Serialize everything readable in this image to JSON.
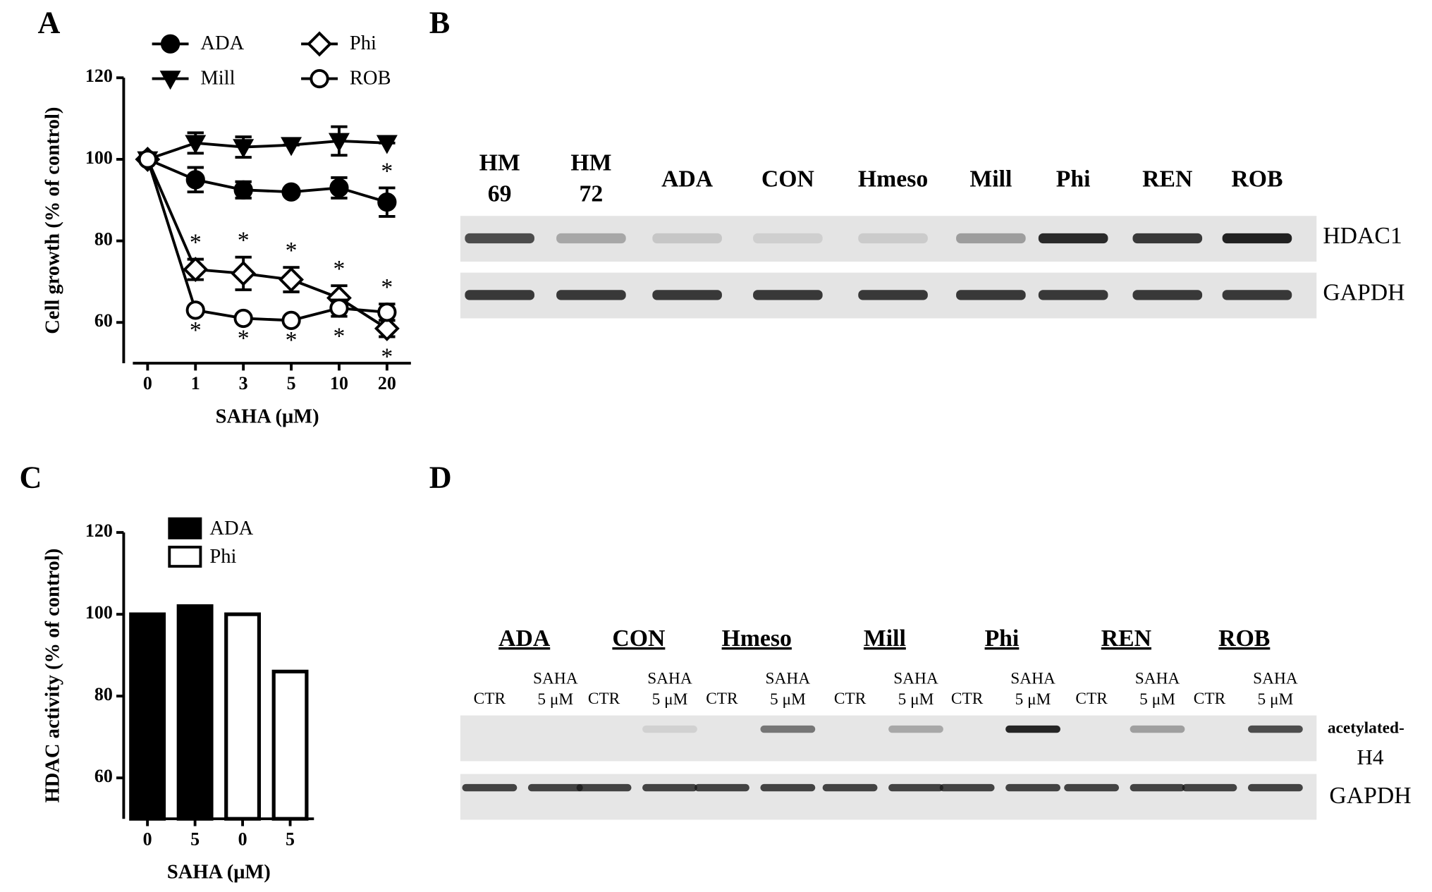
{
  "panels": [
    "A",
    "B",
    "C",
    "D"
  ],
  "chart_data": [
    {
      "type": "line",
      "xlabel": "SAHA (μM)",
      "ylabel": "Cell growth (% of control)",
      "categories": [
        "0",
        "1",
        "3",
        "5",
        "10",
        "20"
      ],
      "ylim": [
        50,
        120
      ],
      "yticks": [
        60,
        80,
        100,
        120
      ],
      "series": [
        {
          "name": "ADA",
          "color": "#000000",
          "marker": "circle",
          "filled": true,
          "values": [
            100,
            95,
            92.5,
            92,
            93,
            89.5
          ],
          "errors": [
            0,
            3,
            2,
            0,
            2.5,
            3.5
          ],
          "significance": [
            null,
            null,
            null,
            null,
            null,
            "*"
          ]
        },
        {
          "name": "Mill",
          "color": "#000000",
          "marker": "triangle-down",
          "filled": true,
          "values": [
            100,
            104,
            103,
            103.5,
            104.5,
            104
          ],
          "errors": [
            0,
            2.5,
            2.5,
            0,
            3.5,
            0
          ],
          "significance": [
            null,
            null,
            null,
            null,
            null,
            null
          ]
        },
        {
          "name": "Phi",
          "color": "#000000",
          "marker": "diamond",
          "filled": false,
          "values": [
            100,
            73,
            72,
            70.5,
            66,
            58.5
          ],
          "errors": [
            0,
            2.5,
            4,
            3,
            3,
            2
          ],
          "significance": [
            null,
            "*",
            "*",
            "*",
            "*",
            "*"
          ]
        },
        {
          "name": "ROB",
          "color": "#000000",
          "marker": "circle",
          "filled": false,
          "values": [
            100,
            63,
            61,
            60.5,
            63.5,
            62.5
          ],
          "errors": [
            0,
            0,
            0,
            0,
            2,
            2
          ],
          "significance": [
            null,
            "*",
            "*",
            "*",
            "*",
            "*"
          ]
        }
      ]
    },
    {
      "type": "bar",
      "xlabel": "SAHA (μM)",
      "ylabel": "HDAC activity (% of control)",
      "categories": [
        "0",
        "5",
        "0",
        "5"
      ],
      "ylim": [
        50,
        120
      ],
      "yticks": [
        60,
        80,
        100,
        120
      ],
      "series": [
        {
          "name": "ADA",
          "color": "#000000",
          "values": [
            100,
            102,
            null,
            null
          ]
        },
        {
          "name": "Phi",
          "color": "#ffffff",
          "values": [
            null,
            null,
            100,
            86
          ]
        }
      ]
    }
  ],
  "blot_b": {
    "lanes": [
      [
        "HM",
        "69"
      ],
      [
        "HM",
        "72"
      ],
      [
        "ADA"
      ],
      [
        "CON"
      ],
      [
        "Hmeso"
      ],
      [
        "Mill"
      ],
      [
        "Phi"
      ],
      [
        "REN"
      ],
      [
        "ROB"
      ]
    ],
    "rows": [
      [
        "HDAC1"
      ],
      [
        "GAPDH"
      ]
    ]
  },
  "blot_d": {
    "groups": [
      "ADA",
      "CON",
      "Hmeso",
      "Mill",
      "Phi",
      "REN",
      "ROB"
    ],
    "conditions": [
      [
        "CTR"
      ],
      [
        "SAHA",
        "5 μM"
      ]
    ],
    "rows": [
      [
        "acetylated-",
        "H4"
      ],
      [
        "GAPDH"
      ]
    ]
  }
}
